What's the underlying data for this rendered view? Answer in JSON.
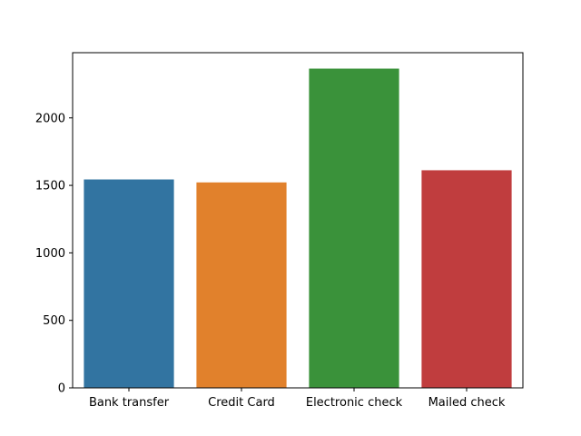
{
  "chart_data": {
    "type": "bar",
    "title": "",
    "xlabel": "",
    "ylabel": "",
    "categories": [
      "Bank transfer",
      "Credit Card",
      "Electronic check",
      "Mailed check"
    ],
    "values": [
      1544,
      1522,
      2365,
      1612
    ],
    "colors": [
      "#3274a1",
      "#e1812c",
      "#3a923a",
      "#c03d3e"
    ],
    "ylim": [
      0,
      2483
    ],
    "yticks": [
      0,
      500,
      1000,
      1500,
      2000
    ],
    "grid": false,
    "legend": "none"
  }
}
